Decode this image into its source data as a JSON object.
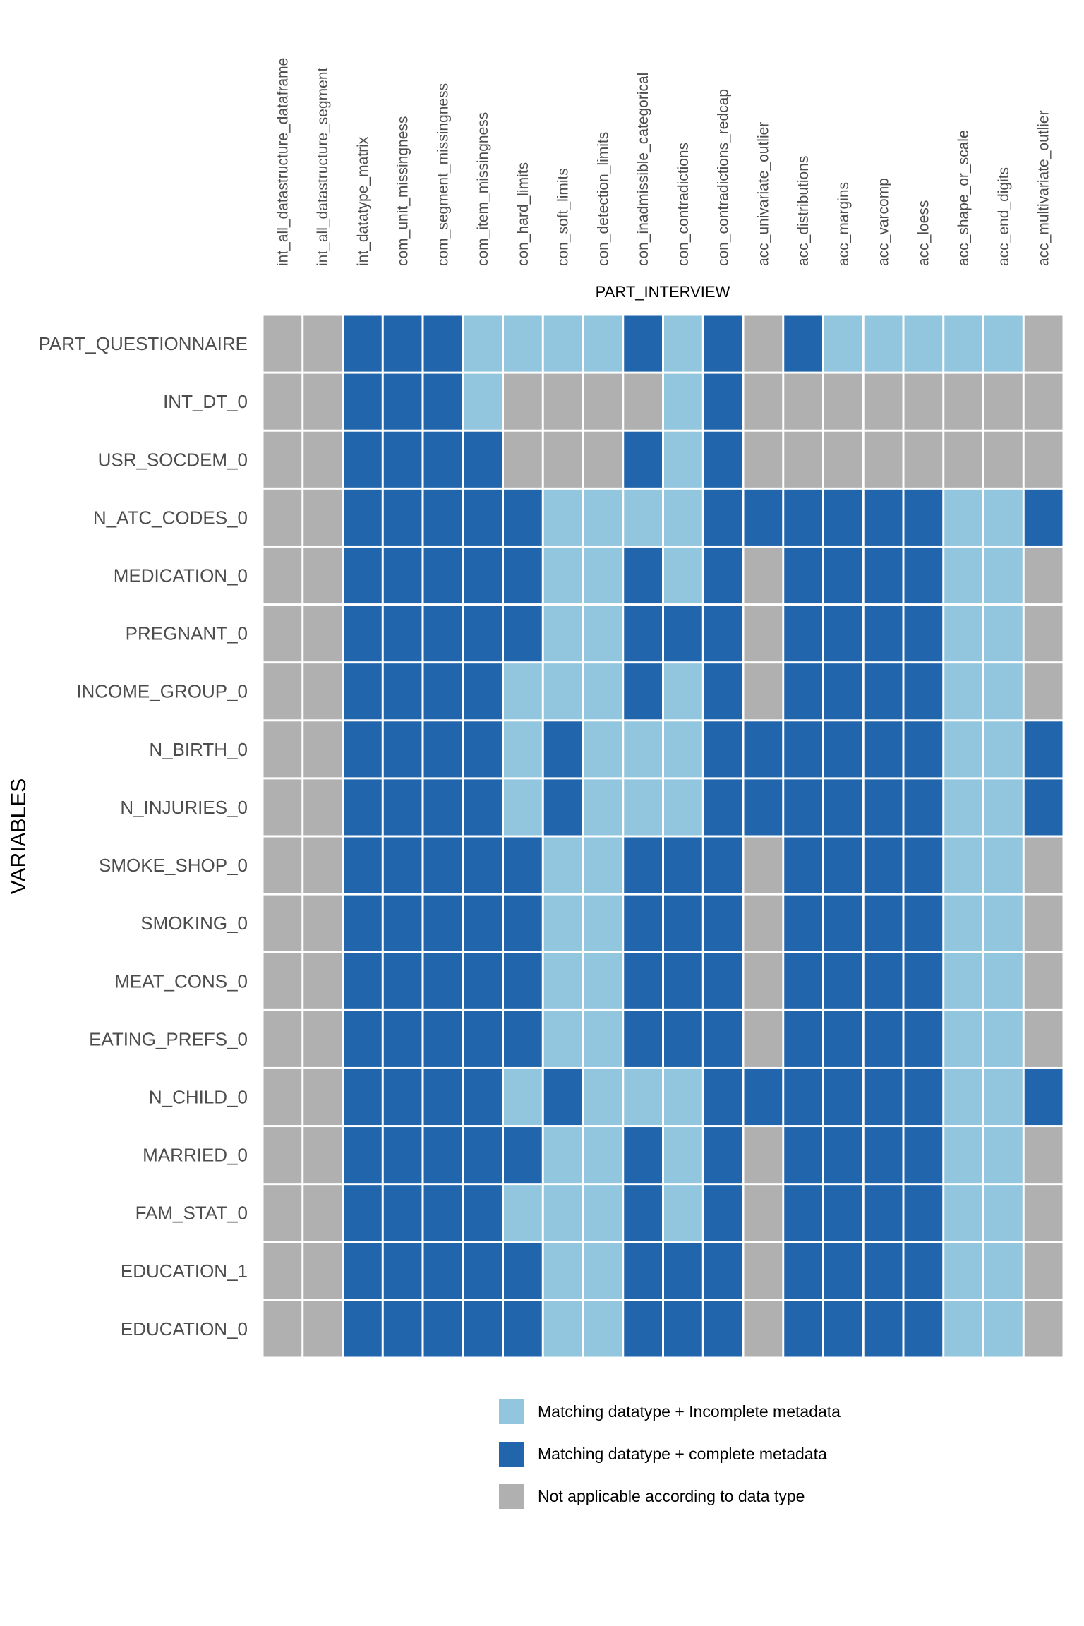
{
  "chart_data": {
    "type": "heatmap",
    "xlabel": "PART_INTERVIEW",
    "ylabel": "VARIABLES",
    "columns": [
      "int_all_datastructure_dataframe",
      "int_all_datastructure_segment",
      "int_datatype_matrix",
      "com_unit_missingness",
      "com_segment_missingness",
      "com_item_missingness",
      "con_hard_limits",
      "con_soft_limits",
      "con_detection_limits",
      "con_inadmissible_categorical",
      "con_contradictions",
      "con_contradictions_redcap",
      "acc_univariate_outlier",
      "acc_distributions",
      "acc_margins",
      "acc_varcomp",
      "acc_loess",
      "acc_shape_or_scale",
      "acc_end_digits",
      "acc_multivariate_outlier"
    ],
    "rows": [
      "PART_QUESTIONNAIRE",
      "INT_DT_0",
      "USR_SOCDEM_0",
      "N_ATC_CODES_0",
      "MEDICATION_0",
      "PREGNANT_0",
      "INCOME_GROUP_0",
      "N_BIRTH_0",
      "N_INJURIES_0",
      "SMOKE_SHOP_0",
      "SMOKING_0",
      "MEAT_CONS_0",
      "EATING_PREFS_0",
      "N_CHILD_0",
      "MARRIED_0",
      "FAM_STAT_0",
      "EDUCATION_1",
      "EDUCATION_0"
    ],
    "cell_codes": {
      "L": "Matching datatype + Incomplete metadata",
      "D": "Matching datatype + complete metadata",
      "G": "Not applicable according to data type"
    },
    "values": [
      "GGDDDLLLLDLDGDLLLLLG",
      "GGDDDLGGGGLDGGGGGGGG",
      "GGDDDDGGGDLDGGGGGGGG",
      "GGDDDDDLLLLDDDDDDLLD",
      "GGDDDDDLLDLDGDDDDLLG",
      "GGDDDDDLLDDDGDDDDLLG",
      "GGDDDDLLLDLDGDDDDLLG",
      "GGDDDDLDLLLDDDDDDLLD",
      "GGDDDDLDLLLDDDDDDLLD",
      "GGDDDDDLLDDDGDDDDLLG",
      "GGDDDDDLLDDDGDDDDLLG",
      "GGDDDDDLLDDDGDDDDLLG",
      "GGDDDDDLLDDDGDDDDLLG",
      "GGDDDDLDLLLDDDDDDLLD",
      "GGDDDDDLLDLDGDDDDLLG",
      "GGDDDDLLLDLDGDDDDLLG",
      "GGDDDDDLLDDDGDDDDLLG",
      "GGDDDDDLLDDDGDDDDLLG"
    ],
    "legend": [
      {
        "code": "L",
        "label": "Matching datatype + Incomplete metadata",
        "color": "#92C5DE"
      },
      {
        "code": "D",
        "label": "Matching datatype + complete metadata",
        "color": "#2166AC"
      },
      {
        "code": "G",
        "label": "Not applicable according to data type",
        "color": "#B0B0B0"
      }
    ],
    "legend_position": "bottom",
    "grid": false
  }
}
